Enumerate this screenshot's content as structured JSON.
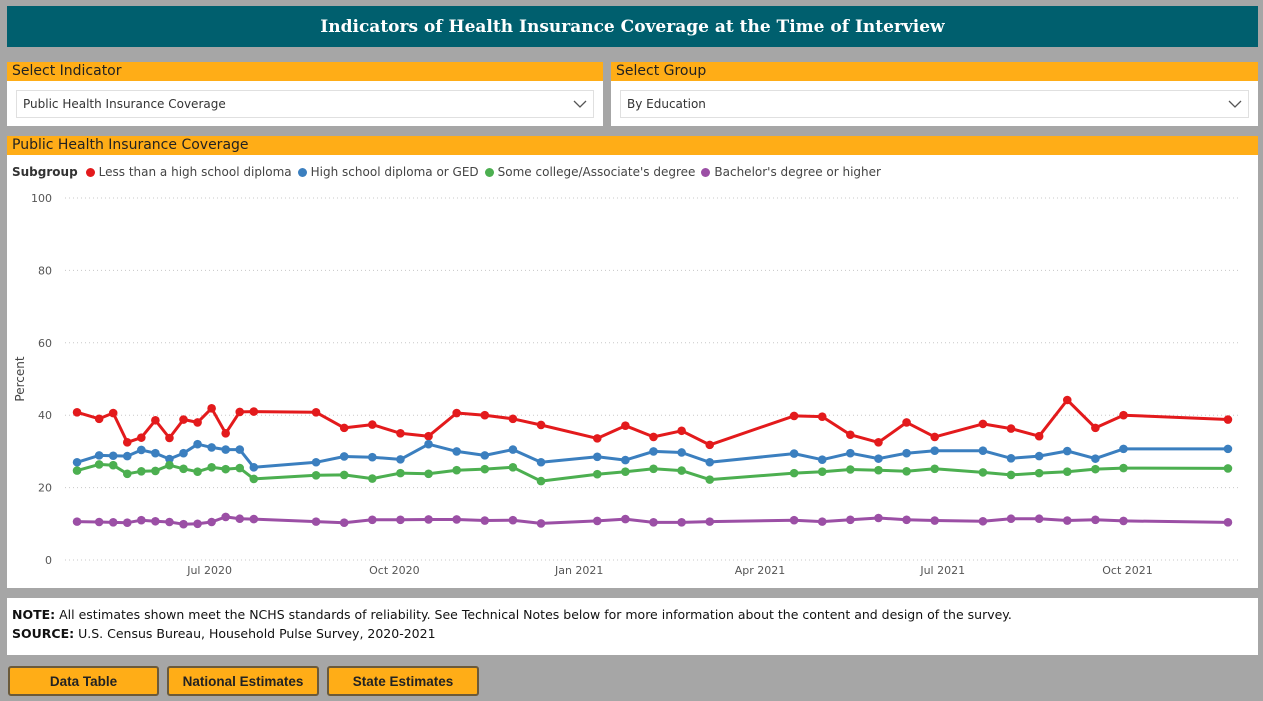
{
  "header": {
    "title": "Indicators of Health Insurance Coverage at the Time of Interview"
  },
  "indicator_select": {
    "label": "Select Indicator",
    "value": "Public Health Insurance Coverage"
  },
  "group_select": {
    "label": "Select Group",
    "value": "By Education"
  },
  "chart_panel": {
    "title": "Public Health Insurance Coverage"
  },
  "chart_data": {
    "type": "line",
    "title": "Public Health Insurance Coverage",
    "ylabel": "Percent",
    "xlabel": "",
    "ylim": [
      0,
      100
    ],
    "yticks": [
      0,
      20,
      40,
      60,
      80,
      100
    ],
    "xlim": [
      "2020-04-20",
      "2021-11-26"
    ],
    "xticks": [
      {
        "date": "2020-07-01",
        "label": "Jul 2020"
      },
      {
        "date": "2020-10-01",
        "label": "Oct 2020"
      },
      {
        "date": "2021-01-01",
        "label": "Jan 2021"
      },
      {
        "date": "2021-04-01",
        "label": "Apr 2021"
      },
      {
        "date": "2021-07-01",
        "label": "Jul 2021"
      },
      {
        "date": "2021-10-01",
        "label": "Oct 2021"
      }
    ],
    "grid": "horizontal dotted",
    "legend_title": "Subgroup",
    "legend_position": "top-left",
    "x": [
      "2020-04-26",
      "2020-05-07",
      "2020-05-14",
      "2020-05-21",
      "2020-05-28",
      "2020-06-04",
      "2020-06-11",
      "2020-06-18",
      "2020-06-25",
      "2020-07-02",
      "2020-07-09",
      "2020-07-16",
      "2020-07-23",
      "2020-08-23",
      "2020-09-06",
      "2020-09-20",
      "2020-10-04",
      "2020-10-18",
      "2020-11-01",
      "2020-11-15",
      "2020-11-29",
      "2020-12-13",
      "2021-01-10",
      "2021-01-24",
      "2021-02-07",
      "2021-02-21",
      "2021-03-07",
      "2021-04-18",
      "2021-05-02",
      "2021-05-16",
      "2021-05-30",
      "2021-06-13",
      "2021-06-27",
      "2021-07-21",
      "2021-08-04",
      "2021-08-18",
      "2021-09-01",
      "2021-09-15",
      "2021-09-29",
      "2021-11-20"
    ],
    "series": [
      {
        "name": "Less than a high school diploma",
        "color": "#e31a1c",
        "values": [
          40.8,
          39.0,
          40.6,
          32.5,
          33.8,
          38.6,
          33.7,
          38.8,
          38.0,
          41.9,
          35.0,
          40.9,
          41.0,
          40.8,
          36.5,
          37.4,
          35.0,
          34.2,
          40.6,
          40.0,
          39.0,
          37.3,
          33.6,
          37.1,
          34.0,
          35.7,
          31.8,
          39.8,
          39.6,
          34.6,
          32.5,
          38.0,
          34.0,
          37.6,
          36.3,
          34.2,
          44.2,
          36.5,
          40.0,
          38.8
        ]
      },
      {
        "name": "High school diploma or GED",
        "color": "#3b7fbf",
        "values": [
          27.0,
          28.9,
          28.8,
          28.7,
          30.4,
          29.5,
          27.9,
          29.5,
          32.0,
          31.1,
          30.5,
          30.5,
          25.6,
          27.0,
          28.6,
          28.4,
          27.8,
          32.0,
          30.0,
          28.9,
          30.5,
          27.0,
          28.5,
          27.6,
          30.0,
          29.7,
          27.0,
          29.4,
          27.7,
          29.5,
          28.0,
          29.5,
          30.2,
          30.2,
          28.1,
          28.7,
          30.1,
          28.0,
          30.7,
          30.7
        ]
      },
      {
        "name": "Some college/Associate's degree",
        "color": "#4caf50",
        "values": [
          24.7,
          26.4,
          26.2,
          23.8,
          24.5,
          24.6,
          26.2,
          25.2,
          24.4,
          25.6,
          25.1,
          25.4,
          22.4,
          23.4,
          23.5,
          22.5,
          24.0,
          23.8,
          24.8,
          25.1,
          25.6,
          21.8,
          23.7,
          24.4,
          25.2,
          24.7,
          22.2,
          24.0,
          24.4,
          25.0,
          24.8,
          24.5,
          25.2,
          24.2,
          23.5,
          24.0,
          24.4,
          25.1,
          25.4,
          25.3
        ]
      },
      {
        "name": "Bachelor's degree or higher",
        "color": "#9b4fa5",
        "values": [
          10.6,
          10.5,
          10.4,
          10.3,
          11.0,
          10.7,
          10.5,
          9.9,
          10.0,
          10.5,
          11.9,
          11.4,
          11.3,
          10.6,
          10.3,
          11.1,
          11.1,
          11.2,
          11.2,
          10.9,
          11.0,
          10.1,
          10.8,
          11.3,
          10.4,
          10.4,
          10.6,
          11.0,
          10.6,
          11.1,
          11.6,
          11.1,
          10.9,
          10.7,
          11.4,
          11.4,
          10.9,
          11.1,
          10.8,
          10.4
        ]
      }
    ]
  },
  "notes": {
    "note_label": "NOTE:",
    "note_text": " All estimates shown meet the NCHS standards of reliability. See Technical Notes below for more information about the content and design of the survey.",
    "source_label": "SOURCE:",
    "source_text": " U.S. Census Bureau, Household Pulse Survey, 2020-2021"
  },
  "buttons": {
    "data_table": "Data Table",
    "national": "National Estimates",
    "state": "State Estimates"
  }
}
